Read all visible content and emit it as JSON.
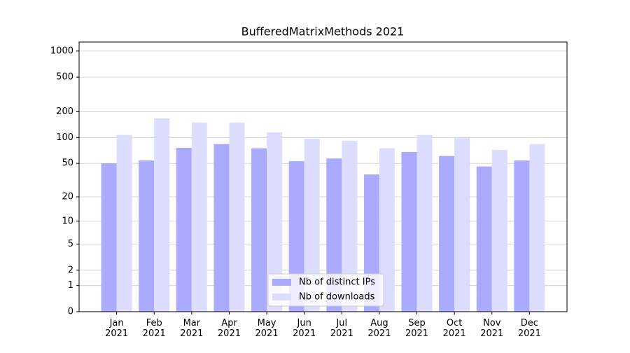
{
  "chart_data": {
    "type": "bar",
    "title": "BufferedMatrixMethods 2021",
    "categories": [
      "Jan\n2021",
      "Feb\n2021",
      "Mar\n2021",
      "Apr\n2021",
      "May\n2021",
      "Jun\n2021",
      "Jul\n2021",
      "Aug\n2021",
      "Sep\n2021",
      "Oct\n2021",
      "Nov\n2021",
      "Dec\n2021"
    ],
    "series": [
      {
        "name": "Nb of distinct IPs",
        "color": "#aaaaff",
        "values": [
          50,
          54,
          76,
          84,
          75,
          53,
          57,
          37,
          68,
          61,
          46,
          54
        ]
      },
      {
        "name": "Nb of downloads",
        "color": "#ddddff",
        "values": [
          107,
          167,
          149,
          149,
          115,
          97,
          92,
          75,
          107,
          100,
          72,
          84
        ]
      }
    ],
    "yscale": "log1p",
    "ylim": [
      0,
      1270
    ],
    "yticks": [
      0,
      1,
      2,
      5,
      10,
      20,
      50,
      100,
      200,
      500,
      1000
    ],
    "grid": true,
    "legend": "lower center"
  }
}
